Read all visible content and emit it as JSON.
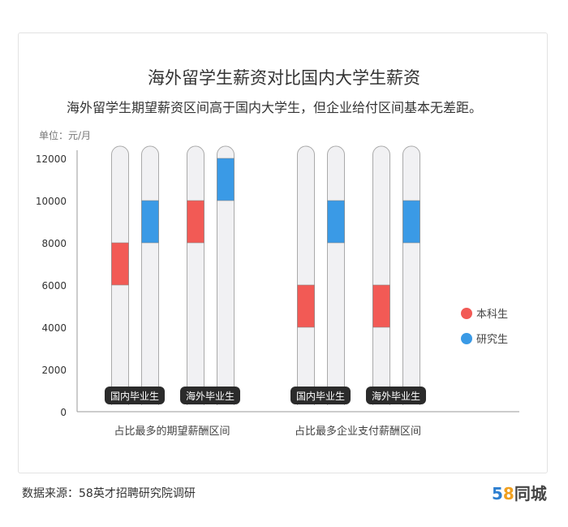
{
  "title": "海外留学生薪资对比国内大学生薪资",
  "subtitle": "海外留学生期望薪资区间高于国内大学生，但企业给付区间基本无差距。",
  "source": "数据来源：58英才招聘研究院调研",
  "logo": {
    "digits": "58",
    "text": "同城"
  },
  "chart_data": {
    "type": "bar",
    "subtype": "floating-range",
    "unit_label": "单位：元/月",
    "ylim": [
      0,
      12000
    ],
    "yticks": [
      "0",
      "2000",
      "4000",
      "6000",
      "8000",
      "10000",
      "12000"
    ],
    "groups": [
      {
        "label": "占比最多的期望薪酬区间",
        "categories": [
          {
            "label": "国内毕业生",
            "bars": [
              {
                "series": "本科生",
                "range": [
                  6000,
                  8000
                ]
              },
              {
                "series": "研究生",
                "range": [
                  8000,
                  10000
                ]
              }
            ]
          },
          {
            "label": "海外毕业生",
            "bars": [
              {
                "series": "本科生",
                "range": [
                  8000,
                  10000
                ]
              },
              {
                "series": "研究生",
                "range": [
                  10000,
                  12000
                ]
              }
            ]
          }
        ]
      },
      {
        "label": "占比最多企业支付薪酬区间",
        "categories": [
          {
            "label": "国内毕业生",
            "bars": [
              {
                "series": "本科生",
                "range": [
                  4000,
                  6000
                ]
              },
              {
                "series": "研究生",
                "range": [
                  8000,
                  10000
                ]
              }
            ]
          },
          {
            "label": "海外毕业生",
            "bars": [
              {
                "series": "本科生",
                "range": [
                  4000,
                  6000
                ]
              },
              {
                "series": "研究生",
                "range": [
                  8000,
                  10000
                ]
              }
            ]
          }
        ]
      }
    ],
    "legend": {
      "placement": "right",
      "entries": [
        {
          "name": "本科生",
          "color": "#f25a55"
        },
        {
          "name": "研究生",
          "color": "#3a9ae6"
        }
      ]
    },
    "track_color": "#f1f1f3",
    "label_bg": "#2b2b2b"
  }
}
